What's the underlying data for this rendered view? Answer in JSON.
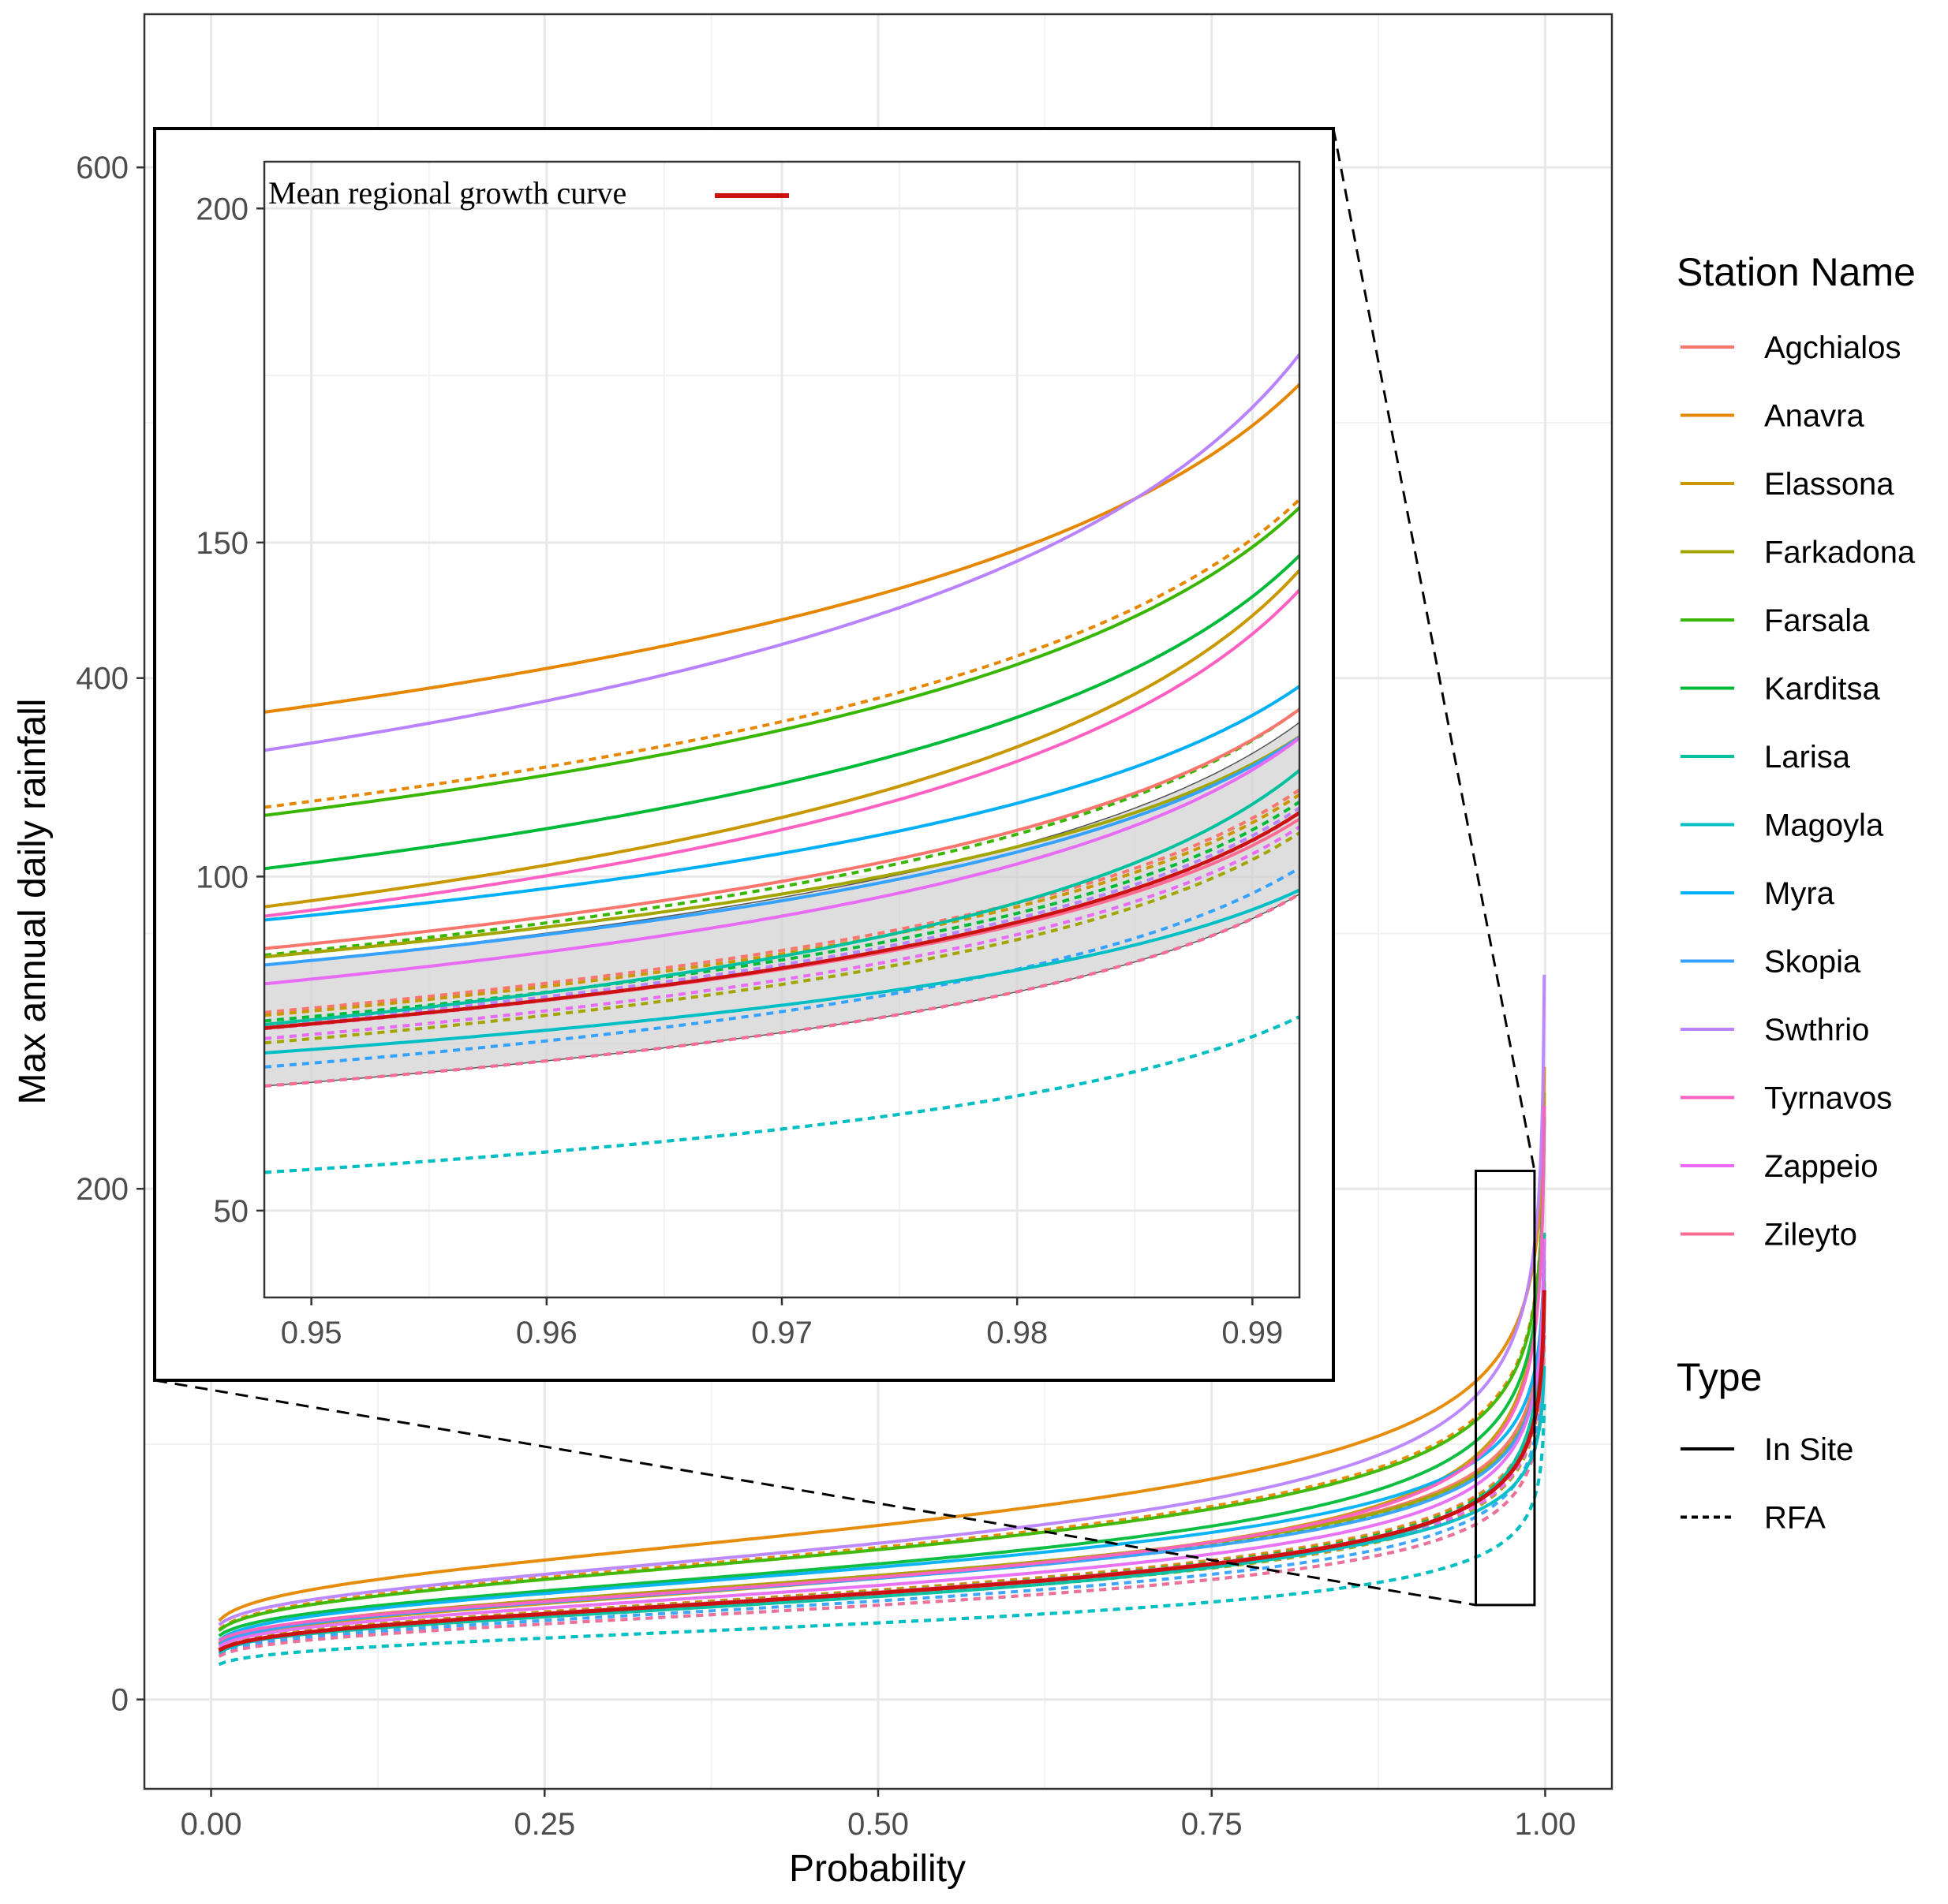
{
  "chart_data": {
    "type": "line",
    "title": "",
    "xlabel": "Probability",
    "ylabel": "Max annual daily rainfall",
    "xlim": [
      -0.05,
      1.05
    ],
    "ylim": [
      -35,
      660
    ],
    "x_ticks": [
      0.0,
      0.25,
      0.5,
      0.75,
      1.0
    ],
    "x_tick_labels": [
      "0.00",
      "0.25",
      "0.50",
      "0.75",
      "1.00"
    ],
    "y_ticks": [
      0,
      200,
      400,
      600
    ],
    "y_tick_labels": [
      "0",
      "200",
      "400",
      "600"
    ],
    "grid": true,
    "curve_model": "GEV quantile function y = mu + sigma * ((-ln p)^(-xi) - 1) / xi, evaluated for p in (0, 1)",
    "legend": {
      "station_title": "Station Name",
      "stations": [
        {
          "name": "Agchialos",
          "color": "#F8766D"
        },
        {
          "name": "Anavra",
          "color": "#E58700"
        },
        {
          "name": "Elassona",
          "color": "#C99800"
        },
        {
          "name": "Farkadona",
          "color": "#A3A500"
        },
        {
          "name": "Farsala",
          "color": "#39B600"
        },
        {
          "name": "Karditsa",
          "color": "#00BA38"
        },
        {
          "name": "Larisa",
          "color": "#00C19F"
        },
        {
          "name": "Magoyla",
          "color": "#00BFC4"
        },
        {
          "name": "Myra",
          "color": "#00B0F6"
        },
        {
          "name": "Skopia",
          "color": "#35A2FF"
        },
        {
          "name": "Swthrio",
          "color": "#B983FF"
        },
        {
          "name": "Tyrnavos",
          "color": "#FF61C3"
        },
        {
          "name": "Zappeio",
          "color": "#E76BF3"
        },
        {
          "name": "Zileyto",
          "color": "#FF6C91"
        }
      ],
      "type_title": "Type",
      "types": [
        {
          "name": "In Site",
          "dash": "solid"
        },
        {
          "name": "RFA",
          "dash": "dotted"
        }
      ]
    },
    "series": [
      {
        "station": "Agchialos",
        "type": "In Site",
        "mu": 43.4,
        "sigma": 13.9,
        "xi": 0.079
      },
      {
        "station": "Agchialos",
        "type": "RFA",
        "mu": 38.3,
        "sigma": 12.3,
        "xi": 0.092
      },
      {
        "station": "Anavra",
        "type": "In Site",
        "mu": 60.9,
        "sigma": 19.5,
        "xi": 0.073
      },
      {
        "station": "Anavra",
        "type": "RFA",
        "mu": 53.2,
        "sigma": 17.0,
        "xi": 0.092
      },
      {
        "station": "Elassona",
        "type": "In Site",
        "mu": 42.1,
        "sigma": 14.3,
        "xi": 0.159
      },
      {
        "station": "Elassona",
        "type": "RFA",
        "mu": 38.2,
        "sigma": 12.2,
        "xi": 0.092
      },
      {
        "station": "Farkadona",
        "type": "In Site",
        "mu": 43.4,
        "sigma": 14.0,
        "xi": 0.056
      },
      {
        "station": "Farkadona",
        "type": "RFA",
        "mu": 36.1,
        "sigma": 11.6,
        "xi": 0.092
      },
      {
        "station": "Farsala",
        "type": "In Site",
        "mu": 52.4,
        "sigma": 16.8,
        "xi": 0.095
      },
      {
        "station": "Farsala",
        "type": "RFA",
        "mu": 42.5,
        "sigma": 13.6,
        "xi": 0.092
      },
      {
        "station": "Karditsa",
        "type": "In Site",
        "mu": 47.4,
        "sigma": 15.2,
        "xi": 0.125
      },
      {
        "station": "Karditsa",
        "type": "RFA",
        "mu": 37.7,
        "sigma": 12.1,
        "xi": 0.092
      },
      {
        "station": "Larisa",
        "type": "In Site",
        "mu": 36.0,
        "sigma": 11.5,
        "xi": 0.143
      },
      {
        "station": "Larisa",
        "type": "RFA",
        "mu": 26.8,
        "sigma": 8.6,
        "xi": 0.092
      },
      {
        "station": "Magoyla",
        "type": "In Site",
        "mu": 37.5,
        "sigma": 12.0,
        "xi": 0.018
      },
      {
        "station": "Magoyla",
        "type": "RFA",
        "mu": 26.8,
        "sigma": 8.6,
        "xi": 0.092
      },
      {
        "station": "Myra",
        "type": "In Site",
        "mu": 46.3,
        "sigma": 14.8,
        "xi": 0.057
      },
      {
        "station": "Myra",
        "type": "RFA",
        "mu": 33.0,
        "sigma": 10.6,
        "xi": 0.092
      },
      {
        "station": "Skopia",
        "type": "In Site",
        "mu": 42.4,
        "sigma": 13.6,
        "xi": 0.072
      },
      {
        "station": "Skopia",
        "type": "RFA",
        "mu": 34.5,
        "sigma": 11.0,
        "xi": 0.092
      },
      {
        "station": "Swthrio",
        "type": "In Site",
        "mu": 54.6,
        "sigma": 17.5,
        "xi": 0.149
      },
      {
        "station": "Swthrio",
        "type": "RFA",
        "mu": 37.4,
        "sigma": 12.0,
        "xi": 0.092
      },
      {
        "station": "Tyrnavos",
        "type": "In Site",
        "mu": 42.7,
        "sigma": 13.7,
        "xi": 0.162
      },
      {
        "station": "Tyrnavos",
        "type": "RFA",
        "mu": 37.2,
        "sigma": 11.9,
        "xi": 0.092
      },
      {
        "station": "Zappeio",
        "type": "In Site",
        "mu": 39.9,
        "sigma": 12.8,
        "xi": 0.107
      },
      {
        "station": "Zappeio",
        "type": "RFA",
        "mu": 36.4,
        "sigma": 11.7,
        "xi": 0.092
      },
      {
        "station": "Zileyto",
        "type": "In Site",
        "mu": 37.6,
        "sigma": 12.0,
        "xi": 0.082
      },
      {
        "station": "Zileyto",
        "type": "RFA",
        "mu": 33.0,
        "sigma": 10.6,
        "xi": 0.092
      }
    ],
    "mean_curve": {
      "label": "Mean regional growth curve",
      "color": "#CC1111",
      "mu": 37.3,
      "sigma": 11.9,
      "xi": 0.092
    },
    "confidence_band": {
      "color": "#D3D3D3",
      "lower": {
        "mu": 33.0,
        "sigma": 10.6,
        "xi": 0.092
      },
      "upper": {
        "mu": 41.7,
        "sigma": 13.4,
        "xi": 0.092
      }
    },
    "inset": {
      "xlim": [
        0.948,
        0.992
      ],
      "ylim": [
        37,
        207
      ],
      "x_ticks": [
        0.95,
        0.96,
        0.97,
        0.98,
        0.99
      ],
      "x_tick_labels": [
        "0.95",
        "0.96",
        "0.97",
        "0.98",
        "0.99"
      ],
      "y_ticks": [
        50,
        100,
        150,
        200
      ],
      "y_tick_labels": [
        "50",
        "100",
        "150",
        "200"
      ],
      "zoom_region": {
        "x": [
          0.948,
          0.992
        ],
        "y": [
          37,
          207
        ]
      }
    }
  }
}
